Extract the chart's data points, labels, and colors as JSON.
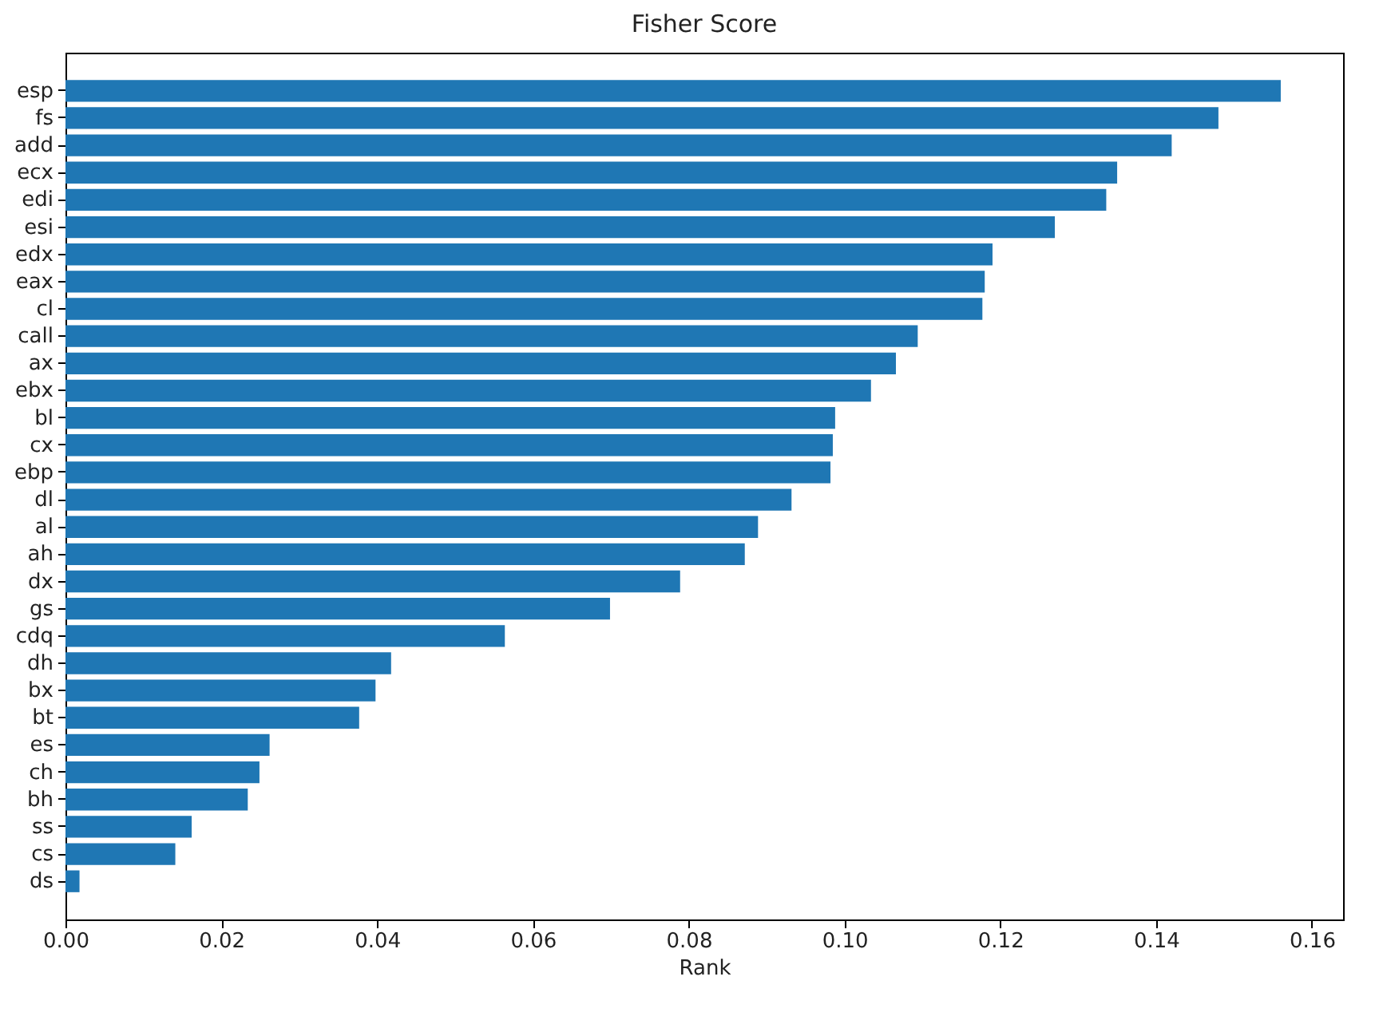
{
  "chart_data": {
    "type": "bar",
    "orientation": "horizontal",
    "title": "Fisher Score",
    "xlabel": "Rank",
    "categories": [
      "esp",
      "fs",
      "add",
      "ecx",
      "edi",
      "esi",
      "edx",
      "eax",
      "cl",
      "call",
      "ax",
      "ebx",
      "bl",
      "cx",
      "ebp",
      "dl",
      "al",
      "ah",
      "dx",
      "gs",
      "cdq",
      "dh",
      "bx",
      "bt",
      "es",
      "ch",
      "bh",
      "ss",
      "cs",
      "ds"
    ],
    "values": [
      0.156,
      0.148,
      0.142,
      0.135,
      0.1336,
      0.127,
      0.119,
      0.118,
      0.1177,
      0.1094,
      0.1066,
      0.1034,
      0.0988,
      0.0985,
      0.0982,
      0.0932,
      0.0889,
      0.0872,
      0.0789,
      0.0699,
      0.0564,
      0.0418,
      0.0398,
      0.0377,
      0.0262,
      0.0249,
      0.0234,
      0.0162,
      0.0141,
      0.0018
    ],
    "color": "#1f77b4",
    "xlim": [
      0,
      0.164
    ],
    "xticks": [
      {
        "value": 0,
        "label": "0.00"
      },
      {
        "value": 0.02,
        "label": "0.02"
      },
      {
        "value": 0.04,
        "label": "0.04"
      },
      {
        "value": 0.06,
        "label": "0.06"
      },
      {
        "value": 0.08,
        "label": "0.08"
      },
      {
        "value": 0.1,
        "label": "0.10"
      },
      {
        "value": 0.12,
        "label": "0.12"
      },
      {
        "value": 0.14,
        "label": "0.14"
      },
      {
        "value": 0.16,
        "label": "0.16"
      }
    ],
    "grid": false
  }
}
